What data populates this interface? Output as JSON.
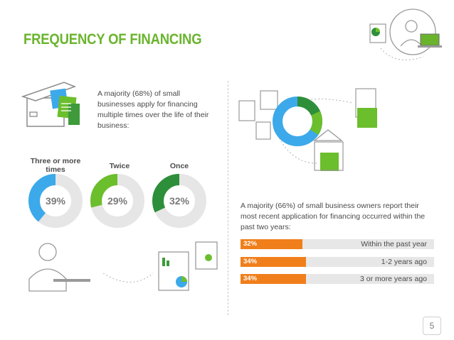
{
  "title": "FREQUENCY OF FINANCING",
  "left_paragraph": "A majority (68%) of small businesses apply for financing multiple times over the life of their business:",
  "right_paragraph": "A majority (66%) of small business owners report their most recent application for financing occurred within the past two years:",
  "page_number": "5",
  "colors": {
    "accent_green": "#6ab42d",
    "donut_blue": "#3ca9ea",
    "donut_light_green": "#6bbe2c",
    "donut_dark_green": "#2e8f3a",
    "bar_orange": "#f07f1b",
    "track_gray": "#e6e6e6"
  },
  "chart_data": [
    {
      "type": "pie",
      "variant": "donut",
      "categories": [
        "Three or more times",
        "Twice",
        "Once"
      ],
      "values": [
        39,
        29,
        32
      ],
      "value_labels": [
        "39%",
        "29%",
        "32%"
      ],
      "colors": [
        "#3ca9ea",
        "#6bbe2c",
        "#2e8f3a"
      ]
    },
    {
      "type": "bar",
      "orientation": "horizontal",
      "categories": [
        "Within the past year",
        "1-2 years ago",
        "3 or more years ago"
      ],
      "values": [
        32,
        34,
        34
      ],
      "value_labels": [
        "32%",
        "34%",
        "34%"
      ],
      "xlim": [
        0,
        100
      ]
    }
  ],
  "donut_labels": [
    "Three or more times",
    "Twice",
    "Once"
  ]
}
